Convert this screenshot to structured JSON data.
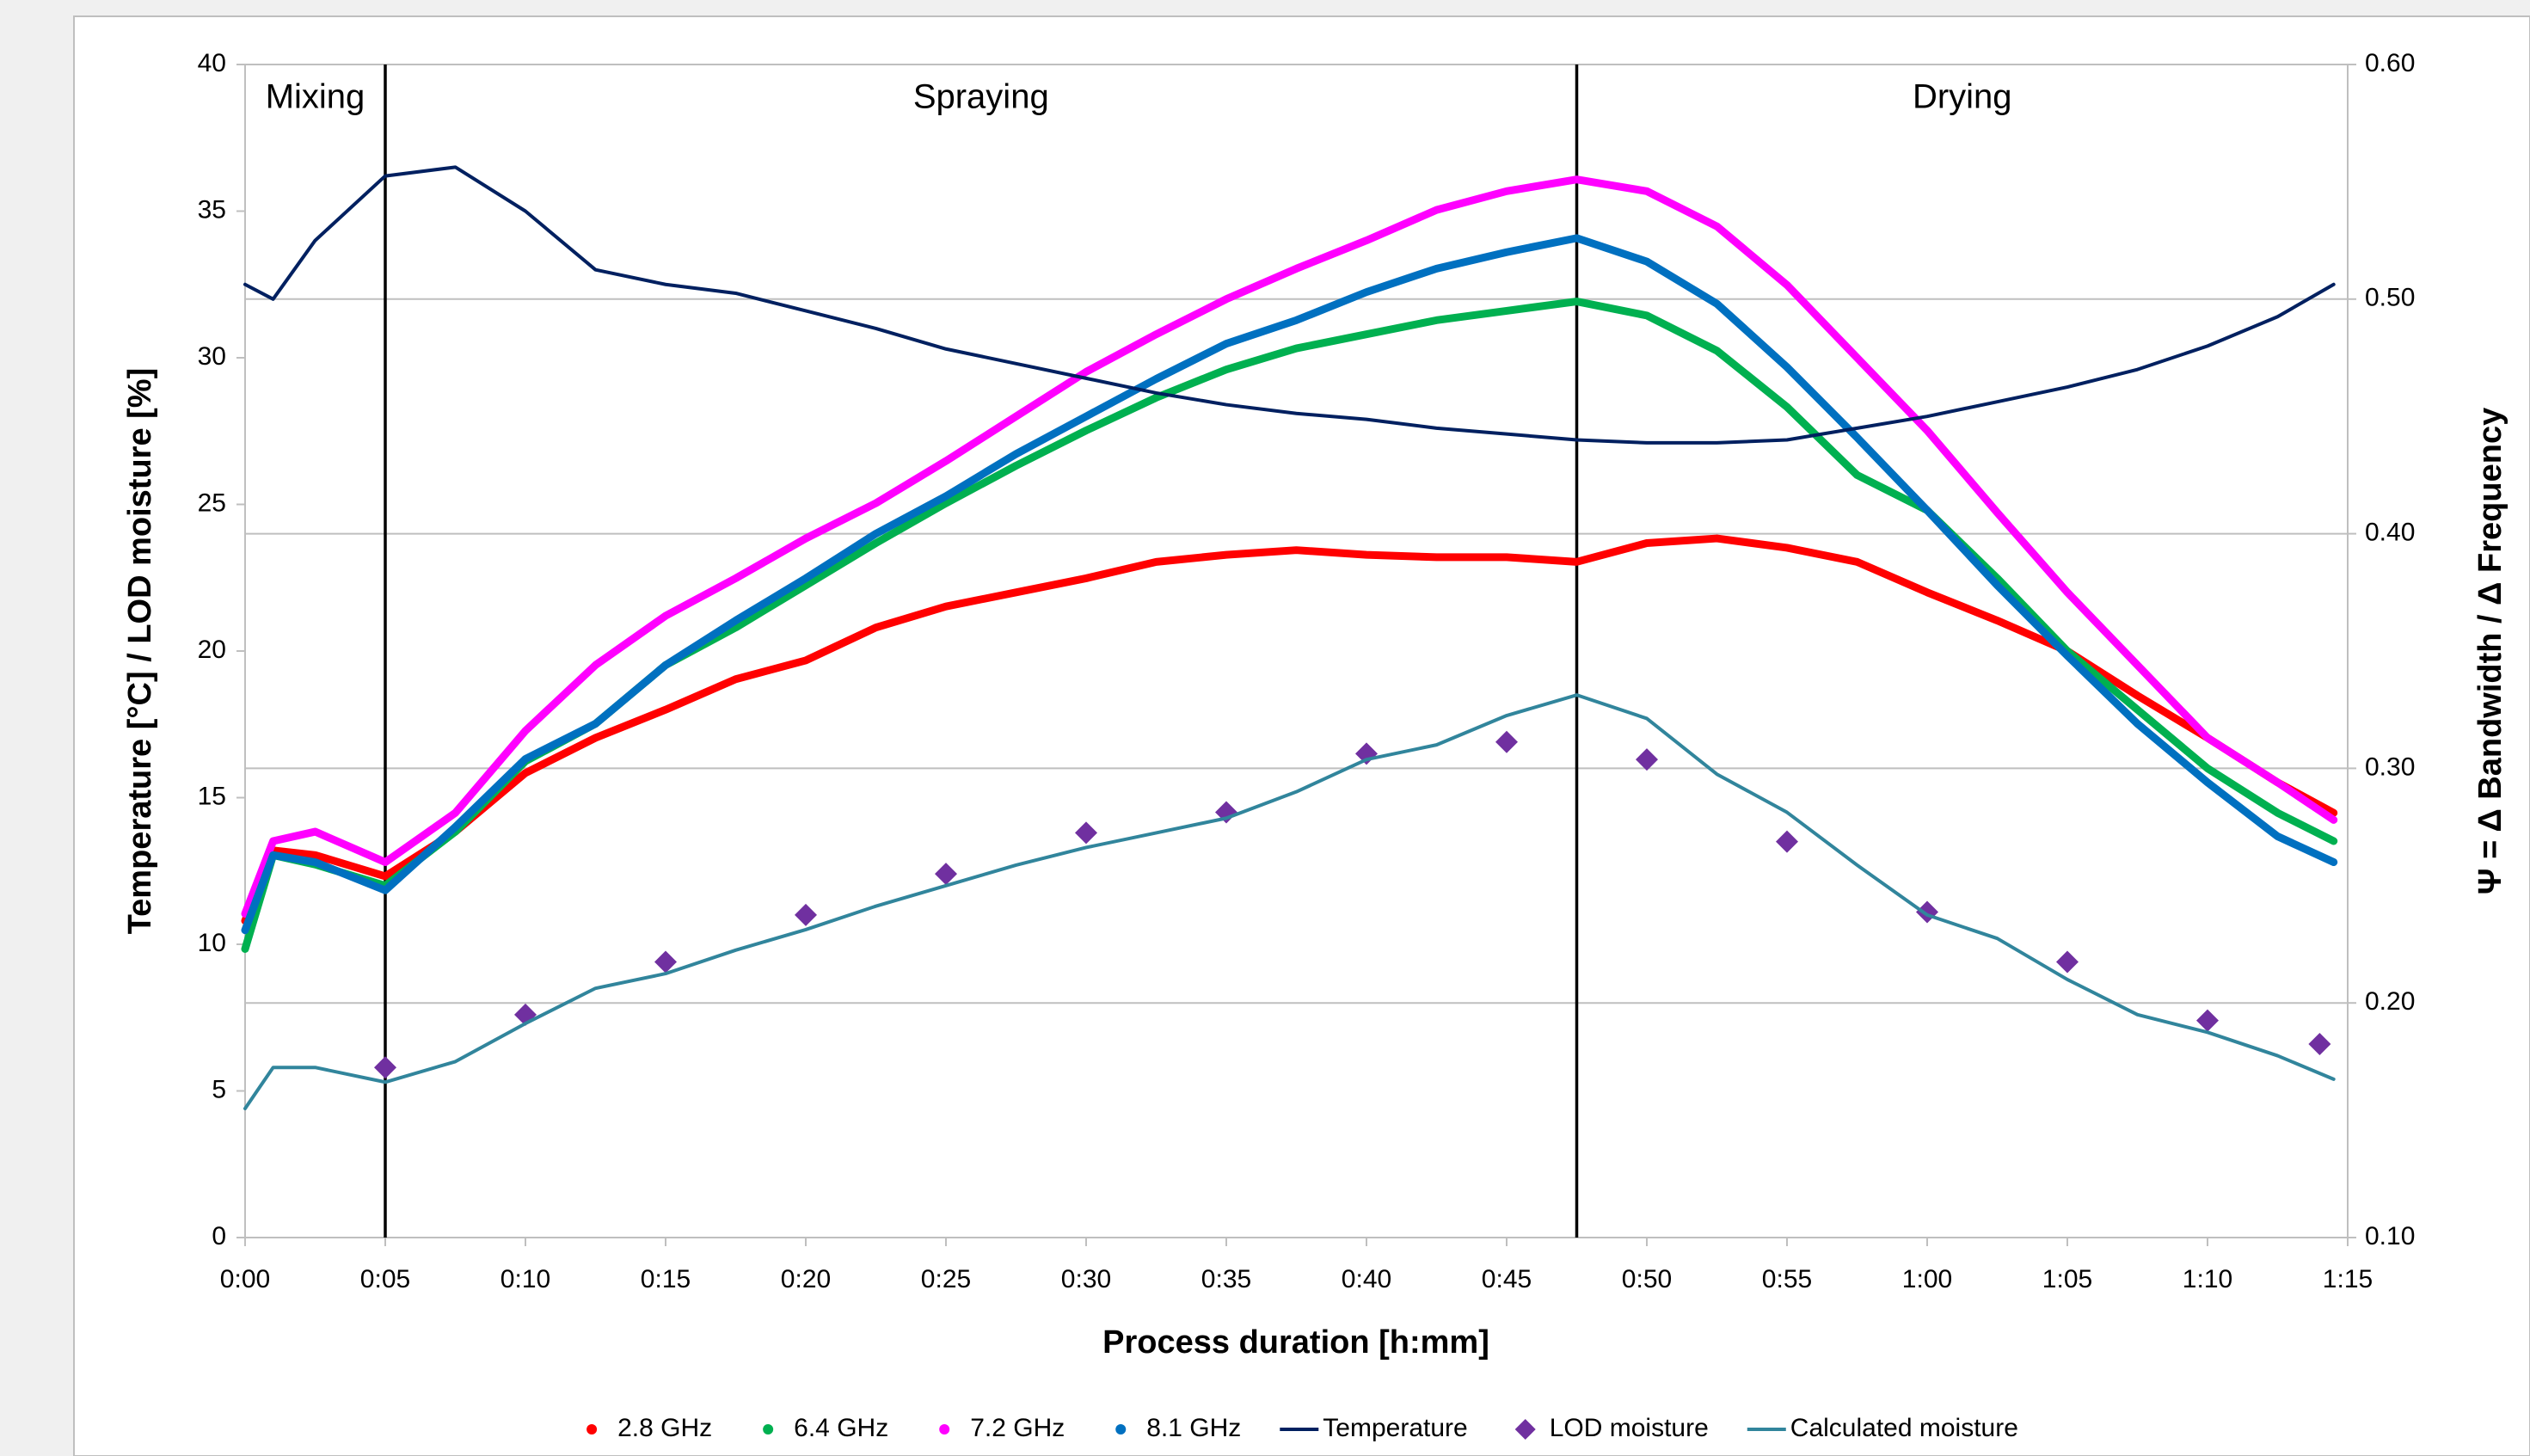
{
  "chart_data": {
    "type": "line",
    "xlabel": "Process duration [h:mm]",
    "ylabel": "Temperature [°C] / LOD moisture [%]",
    "y2label": "Ψ = Δ Bandwidth / Δ Frequency",
    "xlim": [
      0,
      75
    ],
    "xticks": [
      {
        "value": 0,
        "label": "0:00"
      },
      {
        "value": 5,
        "label": "0:05"
      },
      {
        "value": 10,
        "label": "0:10"
      },
      {
        "value": 15,
        "label": "0:15"
      },
      {
        "value": 20,
        "label": "0:20"
      },
      {
        "value": 25,
        "label": "0:25"
      },
      {
        "value": 30,
        "label": "0:30"
      },
      {
        "value": 35,
        "label": "0:35"
      },
      {
        "value": 40,
        "label": "0:40"
      },
      {
        "value": 45,
        "label": "0:45"
      },
      {
        "value": 50,
        "label": "0:50"
      },
      {
        "value": 55,
        "label": "0:55"
      },
      {
        "value": 60,
        "label": "1:00"
      },
      {
        "value": 65,
        "label": "1:05"
      },
      {
        "value": 70,
        "label": "1:10"
      },
      {
        "value": 75,
        "label": "1:15"
      }
    ],
    "ylim": [
      0,
      40
    ],
    "yticks": [
      0,
      5,
      10,
      15,
      20,
      25,
      30,
      35,
      40
    ],
    "y2lim": [
      0.1,
      0.6
    ],
    "y2ticks": [
      {
        "value": 0.1,
        "label": "0.10"
      },
      {
        "value": 0.2,
        "label": "0.20"
      },
      {
        "value": 0.3,
        "label": "0.30"
      },
      {
        "value": 0.4,
        "label": "0.40"
      },
      {
        "value": 0.5,
        "label": "0.50"
      },
      {
        "value": 0.6,
        "label": "0.60"
      }
    ],
    "grid": "y2",
    "legend": "bottom",
    "phases": [
      "Mixing",
      "Spraying",
      "Drying"
    ],
    "phase_dividers": [
      5,
      47.5
    ],
    "x": [
      0,
      1,
      2.5,
      5,
      7.5,
      10,
      12.5,
      15,
      17.5,
      20,
      22.5,
      25,
      27.5,
      30,
      32.5,
      35,
      37.5,
      40,
      42.5,
      45,
      47.5,
      50,
      52.5,
      55,
      57.5,
      60,
      62.5,
      65,
      67.5,
      70,
      72.5,
      74.5
    ],
    "series": [
      {
        "name": "2.8 GHz",
        "color": "#ff0000",
        "marker": "circle",
        "axis": "y2",
        "values": [
          0.235,
          0.265,
          0.263,
          0.254,
          0.273,
          0.298,
          0.313,
          0.325,
          0.338,
          0.346,
          0.36,
          0.369,
          0.375,
          0.381,
          0.388,
          0.391,
          0.393,
          0.391,
          0.39,
          0.39,
          0.388,
          0.396,
          0.398,
          0.394,
          0.388,
          0.375,
          0.363,
          0.35,
          0.331,
          0.313,
          0.294,
          0.281
        ]
      },
      {
        "name": "6.4 GHz",
        "color": "#00b050",
        "marker": "circle",
        "axis": "y2",
        "values": [
          0.223,
          0.263,
          0.259,
          0.25,
          0.273,
          0.303,
          0.319,
          0.344,
          0.36,
          0.378,
          0.396,
          0.413,
          0.429,
          0.444,
          0.458,
          0.47,
          0.479,
          0.485,
          0.491,
          0.495,
          0.499,
          0.493,
          0.478,
          0.454,
          0.425,
          0.41,
          0.381,
          0.35,
          0.325,
          0.3,
          0.281,
          0.269
        ]
      },
      {
        "name": "7.2 GHz",
        "color": "#ff00ff",
        "marker": "circle",
        "axis": "y2",
        "values": [
          0.238,
          0.269,
          0.273,
          0.26,
          0.281,
          0.316,
          0.344,
          0.365,
          0.381,
          0.398,
          0.413,
          0.431,
          0.45,
          0.469,
          0.485,
          0.5,
          0.513,
          0.525,
          0.538,
          0.546,
          0.551,
          0.546,
          0.531,
          0.506,
          0.475,
          0.444,
          0.409,
          0.375,
          0.344,
          0.313,
          0.294,
          0.278
        ]
      },
      {
        "name": "8.1 GHz",
        "color": "#0070c0",
        "marker": "circle",
        "axis": "y2",
        "values": [
          0.231,
          0.263,
          0.26,
          0.248,
          0.275,
          0.304,
          0.319,
          0.344,
          0.363,
          0.381,
          0.4,
          0.416,
          0.434,
          0.45,
          0.466,
          0.481,
          0.491,
          0.503,
          0.513,
          0.52,
          0.526,
          0.516,
          0.498,
          0.471,
          0.441,
          0.41,
          0.378,
          0.348,
          0.319,
          0.294,
          0.271,
          0.26
        ]
      },
      {
        "name": "Temperature",
        "color": "#002060",
        "marker": "line",
        "axis": "y",
        "values": [
          32.5,
          32,
          34,
          36.2,
          36.5,
          35,
          33,
          32.5,
          32.2,
          31.6,
          31,
          30.3,
          29.8,
          29.3,
          28.8,
          28.4,
          28.1,
          27.9,
          27.6,
          27.4,
          27.2,
          27.1,
          27.1,
          27.2,
          27.6,
          28,
          28.5,
          29,
          29.6,
          30.4,
          31.4,
          32.5
        ]
      },
      {
        "name": "LOD moisture",
        "color": "#7030a0",
        "marker": "diamond",
        "axis": "y",
        "x": [
          5,
          10,
          15,
          20,
          25,
          30,
          35,
          40,
          45,
          50,
          55,
          60,
          65,
          70,
          74
        ],
        "values": [
          5.8,
          7.6,
          9.4,
          11,
          12.4,
          13.8,
          14.5,
          16.5,
          16.9,
          16.3,
          13.5,
          11.1,
          9.4,
          7.4,
          6.6
        ]
      },
      {
        "name": "Calculated moisture",
        "color": "#31859c",
        "marker": "line",
        "axis": "y",
        "values": [
          4.4,
          5.8,
          5.8,
          5.3,
          6,
          7.3,
          8.5,
          9,
          9.8,
          10.5,
          11.3,
          12,
          12.7,
          13.3,
          13.8,
          14.3,
          15.2,
          16.3,
          16.8,
          17.8,
          18.5,
          17.7,
          15.8,
          14.5,
          12.7,
          11,
          10.2,
          8.8,
          7.6,
          7,
          6.2,
          5.4
        ]
      }
    ]
  }
}
